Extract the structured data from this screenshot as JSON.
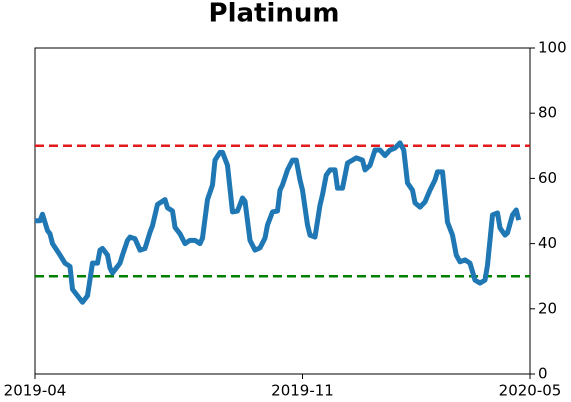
{
  "chart_data": {
    "type": "line",
    "title": "Platinum",
    "x": [
      0,
      4,
      6,
      10,
      12,
      14,
      20,
      24,
      28,
      30,
      34,
      38,
      42,
      46,
      50,
      52,
      54,
      58,
      60,
      62,
      66,
      68,
      70,
      74,
      76,
      80,
      84,
      88,
      92,
      94,
      98,
      102,
      104,
      106,
      110,
      112,
      116,
      120,
      124,
      128,
      132,
      134,
      138,
      142,
      144,
      148,
      150,
      154,
      158,
      162,
      166,
      168,
      172,
      176,
      180,
      184,
      186,
      190,
      194,
      196,
      198,
      202,
      206,
      209,
      212,
      214,
      218,
      220,
      224,
      228,
      230,
      233,
      236,
      240,
      242,
      246,
      250,
      254,
      257,
      262,
      264,
      268,
      272,
      276,
      280,
      284,
      288,
      292,
      295,
      298,
      302,
      304,
      308,
      312,
      316,
      320,
      322,
      326,
      330,
      334,
      337,
      340,
      344,
      348,
      352,
      356,
      360,
      362,
      366,
      370,
      372,
      376,
      378,
      382,
      385,
      387
    ],
    "series": [
      {
        "color": "#1f77b4",
        "values": [
          47,
          47,
          49,
          44,
          43,
          40,
          36.5,
          34,
          33,
          26,
          24,
          22,
          24,
          34,
          34,
          38,
          38.5,
          36.5,
          32.5,
          31,
          33,
          34,
          36.5,
          41,
          42,
          41.5,
          38,
          38.5,
          43.5,
          45.5,
          52,
          53,
          53.5,
          51,
          50,
          45,
          43,
          40,
          41,
          41,
          40,
          41.7,
          53.5,
          58,
          65.6,
          68,
          68,
          64,
          49.7,
          50,
          54,
          53,
          41,
          38,
          38.7,
          41.7,
          45.7,
          49.7,
          50,
          56.4,
          58,
          62.6,
          65.6,
          65.6,
          59.5,
          56.4,
          45.7,
          42.6,
          42,
          51.8,
          55,
          61,
          62.6,
          62.6,
          57,
          57,
          64.7,
          65.6,
          66.3,
          65.6,
          62.6,
          64,
          68.7,
          68.7,
          67,
          68.7,
          69.3,
          70.9,
          68.7,
          58.6,
          56.4,
          52.5,
          51.2,
          52.8,
          56.4,
          59.5,
          62,
          62,
          46.6,
          42.6,
          36.5,
          34.4,
          35,
          34,
          28.8,
          27.9,
          28.8,
          33.4,
          48.8,
          49.4,
          44.8,
          42.6,
          43.3,
          48.8,
          50.3,
          47.2
        ]
      }
    ],
    "xlim": [
      0,
      396
    ],
    "xticks": [
      {
        "value": 0,
        "label": "2019-04"
      },
      {
        "value": 214,
        "label": "2019-11"
      },
      {
        "value": 396,
        "label": "2020-05"
      }
    ],
    "ylim": [
      0,
      100
    ],
    "yticks": [
      0,
      20,
      40,
      60,
      80,
      100
    ],
    "y_axis_side": "right",
    "hlines": [
      {
        "value": 70,
        "color": "#e31a1c"
      },
      {
        "value": 30,
        "color": "#008000"
      }
    ]
  }
}
